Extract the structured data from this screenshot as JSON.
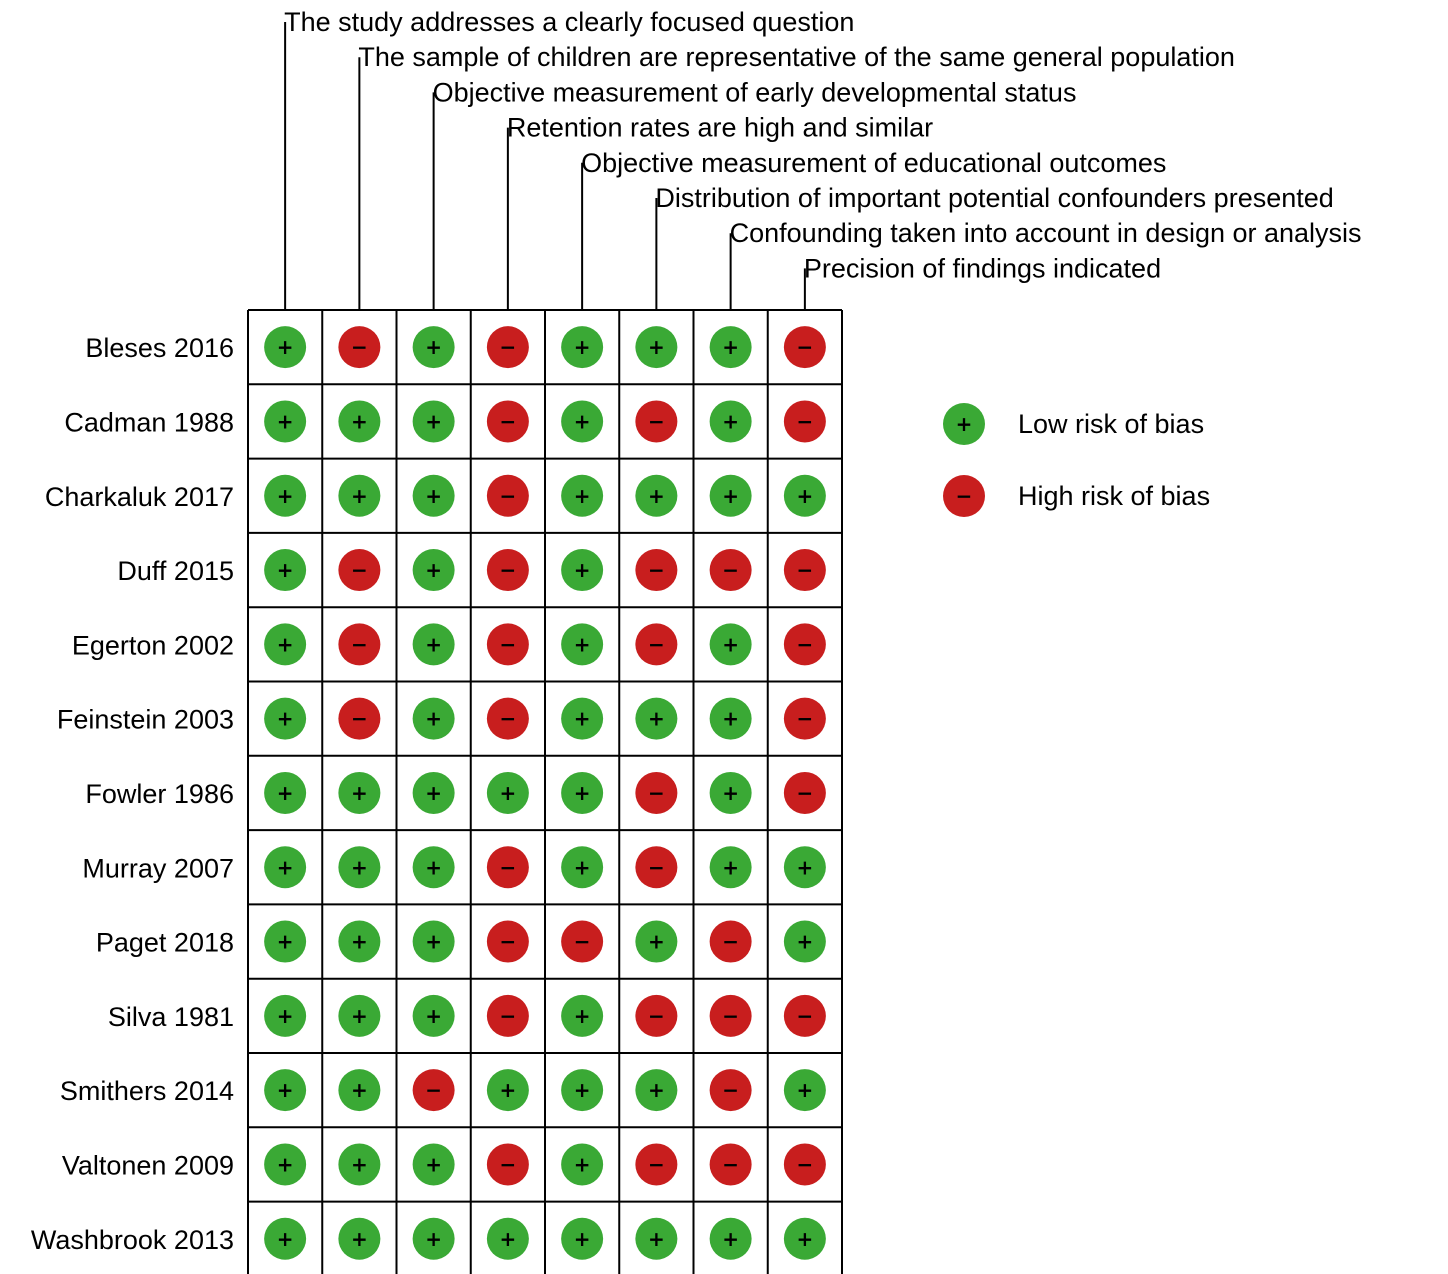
{
  "chart_data": {
    "type": "table",
    "domains": [
      "The study addresses a clearly focused question",
      "The sample of children are representative of the same general population",
      "Objective measurement of early developmental status",
      "Retention rates are high and similar",
      "Objective measurement of educational outcomes",
      "Distribution of important potential confounders presented",
      "Confounding taken into account in design or analysis",
      "Precision of findings indicated"
    ],
    "studies": [
      {
        "name": "Bleses 2016",
        "ratings": [
          "low",
          "high",
          "low",
          "high",
          "low",
          "low",
          "low",
          "high"
        ]
      },
      {
        "name": "Cadman 1988",
        "ratings": [
          "low",
          "low",
          "low",
          "high",
          "low",
          "high",
          "low",
          "high"
        ]
      },
      {
        "name": "Charkaluk 2017",
        "ratings": [
          "low",
          "low",
          "low",
          "high",
          "low",
          "low",
          "low",
          "low"
        ]
      },
      {
        "name": "Duff 2015",
        "ratings": [
          "low",
          "high",
          "low",
          "high",
          "low",
          "high",
          "high",
          "high"
        ]
      },
      {
        "name": "Egerton 2002",
        "ratings": [
          "low",
          "high",
          "low",
          "high",
          "low",
          "high",
          "low",
          "high"
        ]
      },
      {
        "name": "Feinstein 2003",
        "ratings": [
          "low",
          "high",
          "low",
          "high",
          "low",
          "low",
          "low",
          "high"
        ]
      },
      {
        "name": "Fowler 1986",
        "ratings": [
          "low",
          "low",
          "low",
          "low",
          "low",
          "high",
          "low",
          "high"
        ]
      },
      {
        "name": "Murray 2007",
        "ratings": [
          "low",
          "low",
          "low",
          "high",
          "low",
          "high",
          "low",
          "low"
        ]
      },
      {
        "name": "Paget 2018",
        "ratings": [
          "low",
          "low",
          "low",
          "high",
          "high",
          "low",
          "high",
          "low"
        ]
      },
      {
        "name": "Silva 1981",
        "ratings": [
          "low",
          "low",
          "low",
          "high",
          "low",
          "high",
          "high",
          "high"
        ]
      },
      {
        "name": "Smithers 2014",
        "ratings": [
          "low",
          "low",
          "high",
          "low",
          "low",
          "low",
          "high",
          "low"
        ]
      },
      {
        "name": "Valtonen 2009",
        "ratings": [
          "low",
          "low",
          "low",
          "high",
          "low",
          "high",
          "high",
          "high"
        ]
      },
      {
        "name": "Washbrook 2013",
        "ratings": [
          "low",
          "low",
          "low",
          "low",
          "low",
          "low",
          "low",
          "low"
        ]
      }
    ],
    "legend": {
      "placement": "right",
      "items": [
        {
          "key": "low",
          "label": "Low risk of bias",
          "symbol": "+",
          "color": "#3aa935"
        },
        {
          "key": "high",
          "label": "High risk of bias",
          "symbol": "−",
          "color": "#c81e1e"
        }
      ]
    }
  }
}
